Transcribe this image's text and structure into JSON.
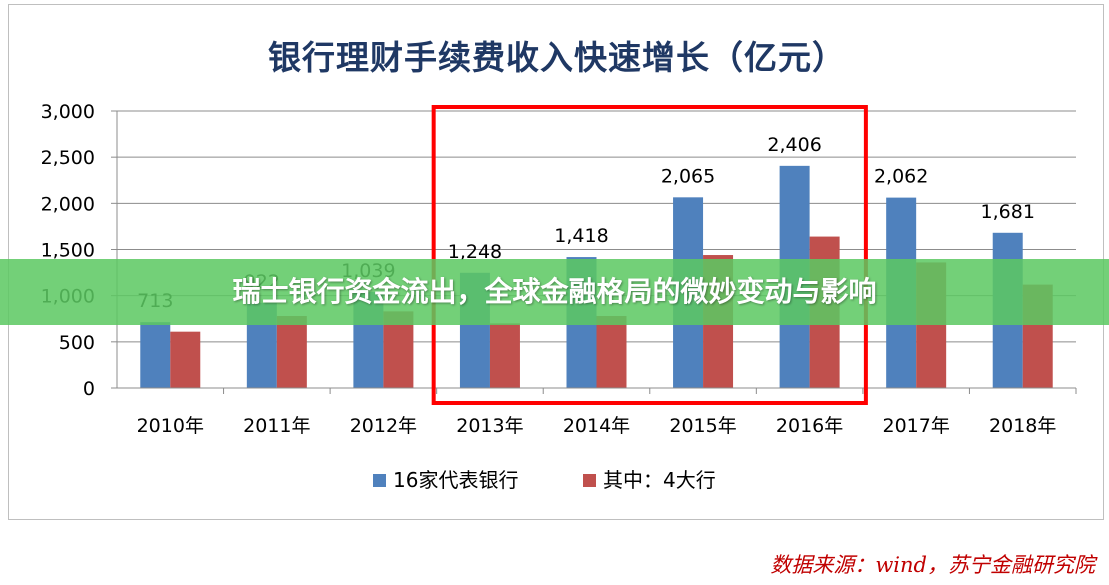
{
  "chart_data": {
    "type": "bar",
    "title": "银行理财手续费收入快速增长（亿元）",
    "categories": [
      "2010年",
      "2011年",
      "2012年",
      "2013年",
      "2014年",
      "2015年",
      "2016年",
      "2017年",
      "2018年"
    ],
    "series": [
      {
        "name": "16家代表银行",
        "color": "#4f81bd",
        "values": [
          713,
          922,
          1039,
          1248,
          1418,
          2065,
          2406,
          2062,
          1681
        ],
        "labels": [
          "713",
          "922",
          "1,039",
          "1,248",
          "1,418",
          "2,065",
          "2,406",
          "2,062",
          "1,681"
        ]
      },
      {
        "name": "其中：4大行",
        "color": "#c0504d",
        "values": [
          610,
          780,
          830,
          700,
          780,
          1440,
          1640,
          1360,
          1120
        ]
      }
    ],
    "xlabel": "",
    "ylabel": "",
    "ylim": [
      0,
      3000
    ],
    "yticks": [
      0,
      500,
      1000,
      1500,
      2000,
      2500,
      3000
    ],
    "ytick_labels": [
      "0",
      "500",
      "1,000",
      "1,500",
      "2,000",
      "2,500",
      "3,000"
    ],
    "grid": true,
    "legend_position": "bottom",
    "highlight": {
      "from": "2013年",
      "to": "2016年",
      "color": "#ff0000"
    }
  },
  "banner": {
    "text": "瑞士银行资金流出，全球金融格局的微妙变动与影响"
  },
  "source_note": "数据来源：wind，苏宁金融研究院"
}
